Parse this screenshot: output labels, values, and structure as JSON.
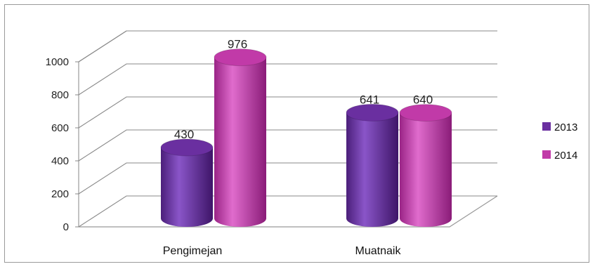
{
  "chart_data": {
    "type": "bar",
    "style": "3d-cylinder",
    "categories": [
      "Pengimejan",
      "Muatnaik"
    ],
    "series": [
      {
        "name": "2013",
        "values": [
          430,
          641
        ],
        "color": "#6a2fa0"
      },
      {
        "name": "2014",
        "values": [
          976,
          640
        ],
        "color": "#c13aa8"
      }
    ],
    "ylim": [
      0,
      1000
    ],
    "yticks": [
      0,
      200,
      400,
      600,
      800,
      1000
    ],
    "grid": true,
    "legend": "right",
    "data_labels": true,
    "title": "",
    "xlabel": "",
    "ylabel": ""
  }
}
